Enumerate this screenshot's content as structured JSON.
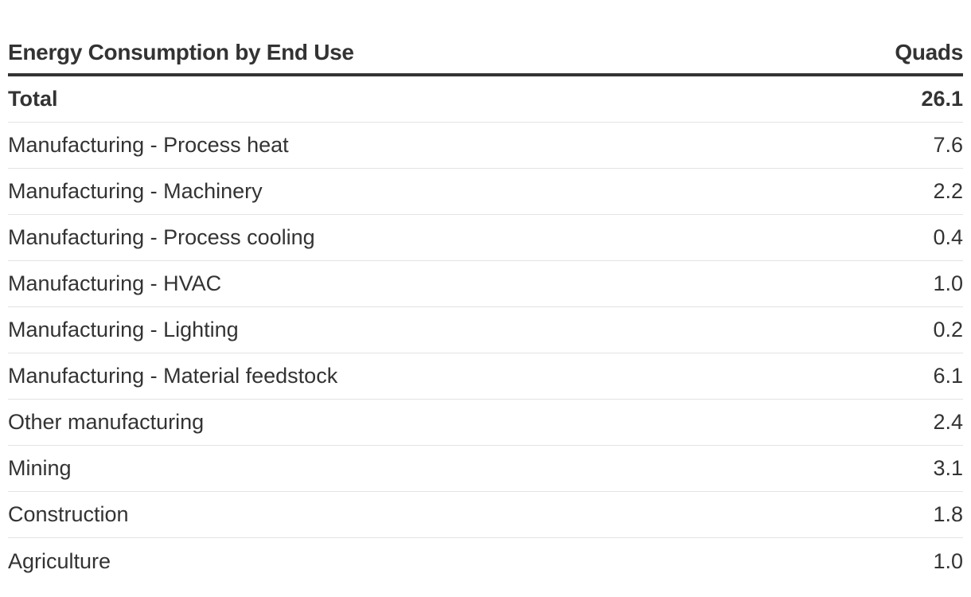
{
  "chart_data": {
    "type": "table",
    "title": "",
    "columns": [
      "Energy Consumption by End Use",
      "Quads"
    ],
    "rows": [
      {
        "label": "Total",
        "value": "26.1",
        "bold": true
      },
      {
        "label": "Manufacturing - Process heat",
        "value": "7.6"
      },
      {
        "label": "Manufacturing - Machinery",
        "value": "2.2"
      },
      {
        "label": "Manufacturing - Process cooling",
        "value": "0.4"
      },
      {
        "label": "Manufacturing - HVAC",
        "value": "1.0"
      },
      {
        "label": "Manufacturing - Lighting",
        "value": "0.2"
      },
      {
        "label": "Manufacturing - Material feedstock",
        "value": "6.1"
      },
      {
        "label": "Other manufacturing",
        "value": "2.4"
      },
      {
        "label": "Mining",
        "value": "3.1"
      },
      {
        "label": "Construction",
        "value": "1.8"
      },
      {
        "label": "Agriculture",
        "value": "1.0"
      }
    ]
  },
  "colors": {
    "text": "#333333",
    "rule_heavy": "#333333",
    "rule_light": "#e3e3e3",
    "background": "#ffffff"
  }
}
